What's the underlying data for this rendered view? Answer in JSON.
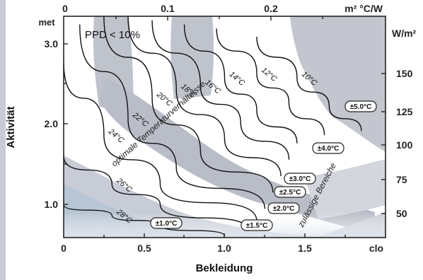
{
  "chart_data": {
    "type": "line",
    "ylabel": "Aktivität",
    "xlabel": "Bekleidung",
    "x_unit": "clo",
    "x_top_unit": "m² °C/W",
    "y_unit": "met",
    "y_right_unit": "W/m²",
    "xlim": [
      0,
      2.0
    ],
    "ylim": [
      0.6,
      3.3
    ],
    "x_ticks": [
      "0",
      "0.5",
      "1.0",
      "1.5"
    ],
    "x_top_ticks": [
      "0",
      "0.1",
      "0.2"
    ],
    "y_ticks": [
      "1.0",
      "2.0",
      "3.0"
    ],
    "y_right_ticks": [
      "50",
      "75",
      "100",
      "125",
      "150"
    ],
    "ppd_label": "PPD < 10%",
    "band_label_optimal": "optimale Temperaturverhältnisse",
    "band_label_allowed": "zulässige Bereiche",
    "series": [
      {
        "name": "10°C",
        "points": [
          [
            1.2,
            3.05
          ],
          [
            1.45,
            2.55
          ],
          [
            1.65,
            2.2
          ],
          [
            1.85,
            1.9
          ]
        ]
      },
      {
        "name": "12°C",
        "points": [
          [
            0.95,
            3.15
          ],
          [
            1.2,
            2.6
          ],
          [
            1.4,
            2.25
          ],
          [
            1.62,
            1.85
          ]
        ]
      },
      {
        "name": "14°C",
        "points": [
          [
            0.75,
            3.2
          ],
          [
            1.0,
            2.55
          ],
          [
            1.2,
            2.15
          ],
          [
            1.45,
            1.75
          ]
        ]
      },
      {
        "name": "16°C",
        "points": [
          [
            0.55,
            3.25
          ],
          [
            0.85,
            2.45
          ],
          [
            1.1,
            2.0
          ],
          [
            1.4,
            1.55
          ]
        ]
      },
      {
        "name": "18°C",
        "points": [
          [
            0.4,
            3.3
          ],
          [
            0.7,
            2.4
          ],
          [
            1.0,
            1.8
          ],
          [
            1.35,
            1.35
          ]
        ]
      },
      {
        "name": "20°C",
        "points": [
          [
            0.25,
            3.3
          ],
          [
            0.55,
            2.3
          ],
          [
            0.85,
            1.65
          ],
          [
            1.3,
            1.15
          ]
        ]
      },
      {
        "name": "22°C",
        "points": [
          [
            0.1,
            3.2
          ],
          [
            0.4,
            2.05
          ],
          [
            0.7,
            1.45
          ],
          [
            1.25,
            0.95
          ]
        ]
      },
      {
        "name": "24°C",
        "points": [
          [
            0.0,
            2.75
          ],
          [
            0.25,
            1.85
          ],
          [
            0.6,
            1.25
          ],
          [
            1.2,
            0.8
          ]
        ]
      },
      {
        "name": "26°C",
        "points": [
          [
            0.0,
            1.6
          ],
          [
            0.3,
            1.25
          ],
          [
            0.6,
            1.0
          ],
          [
            1.15,
            0.68
          ]
        ]
      },
      {
        "name": "28°C",
        "points": [
          [
            0.0,
            1.0
          ],
          [
            0.3,
            0.87
          ],
          [
            0.6,
            0.75
          ],
          [
            1.0,
            0.62
          ]
        ]
      }
    ],
    "tolerance_labels": [
      "±1.0°C",
      "±1.5°C",
      "±2.0°C",
      "±2.5°C",
      "±3.0°C",
      "±4.0°C",
      "±5.0°C"
    ]
  }
}
